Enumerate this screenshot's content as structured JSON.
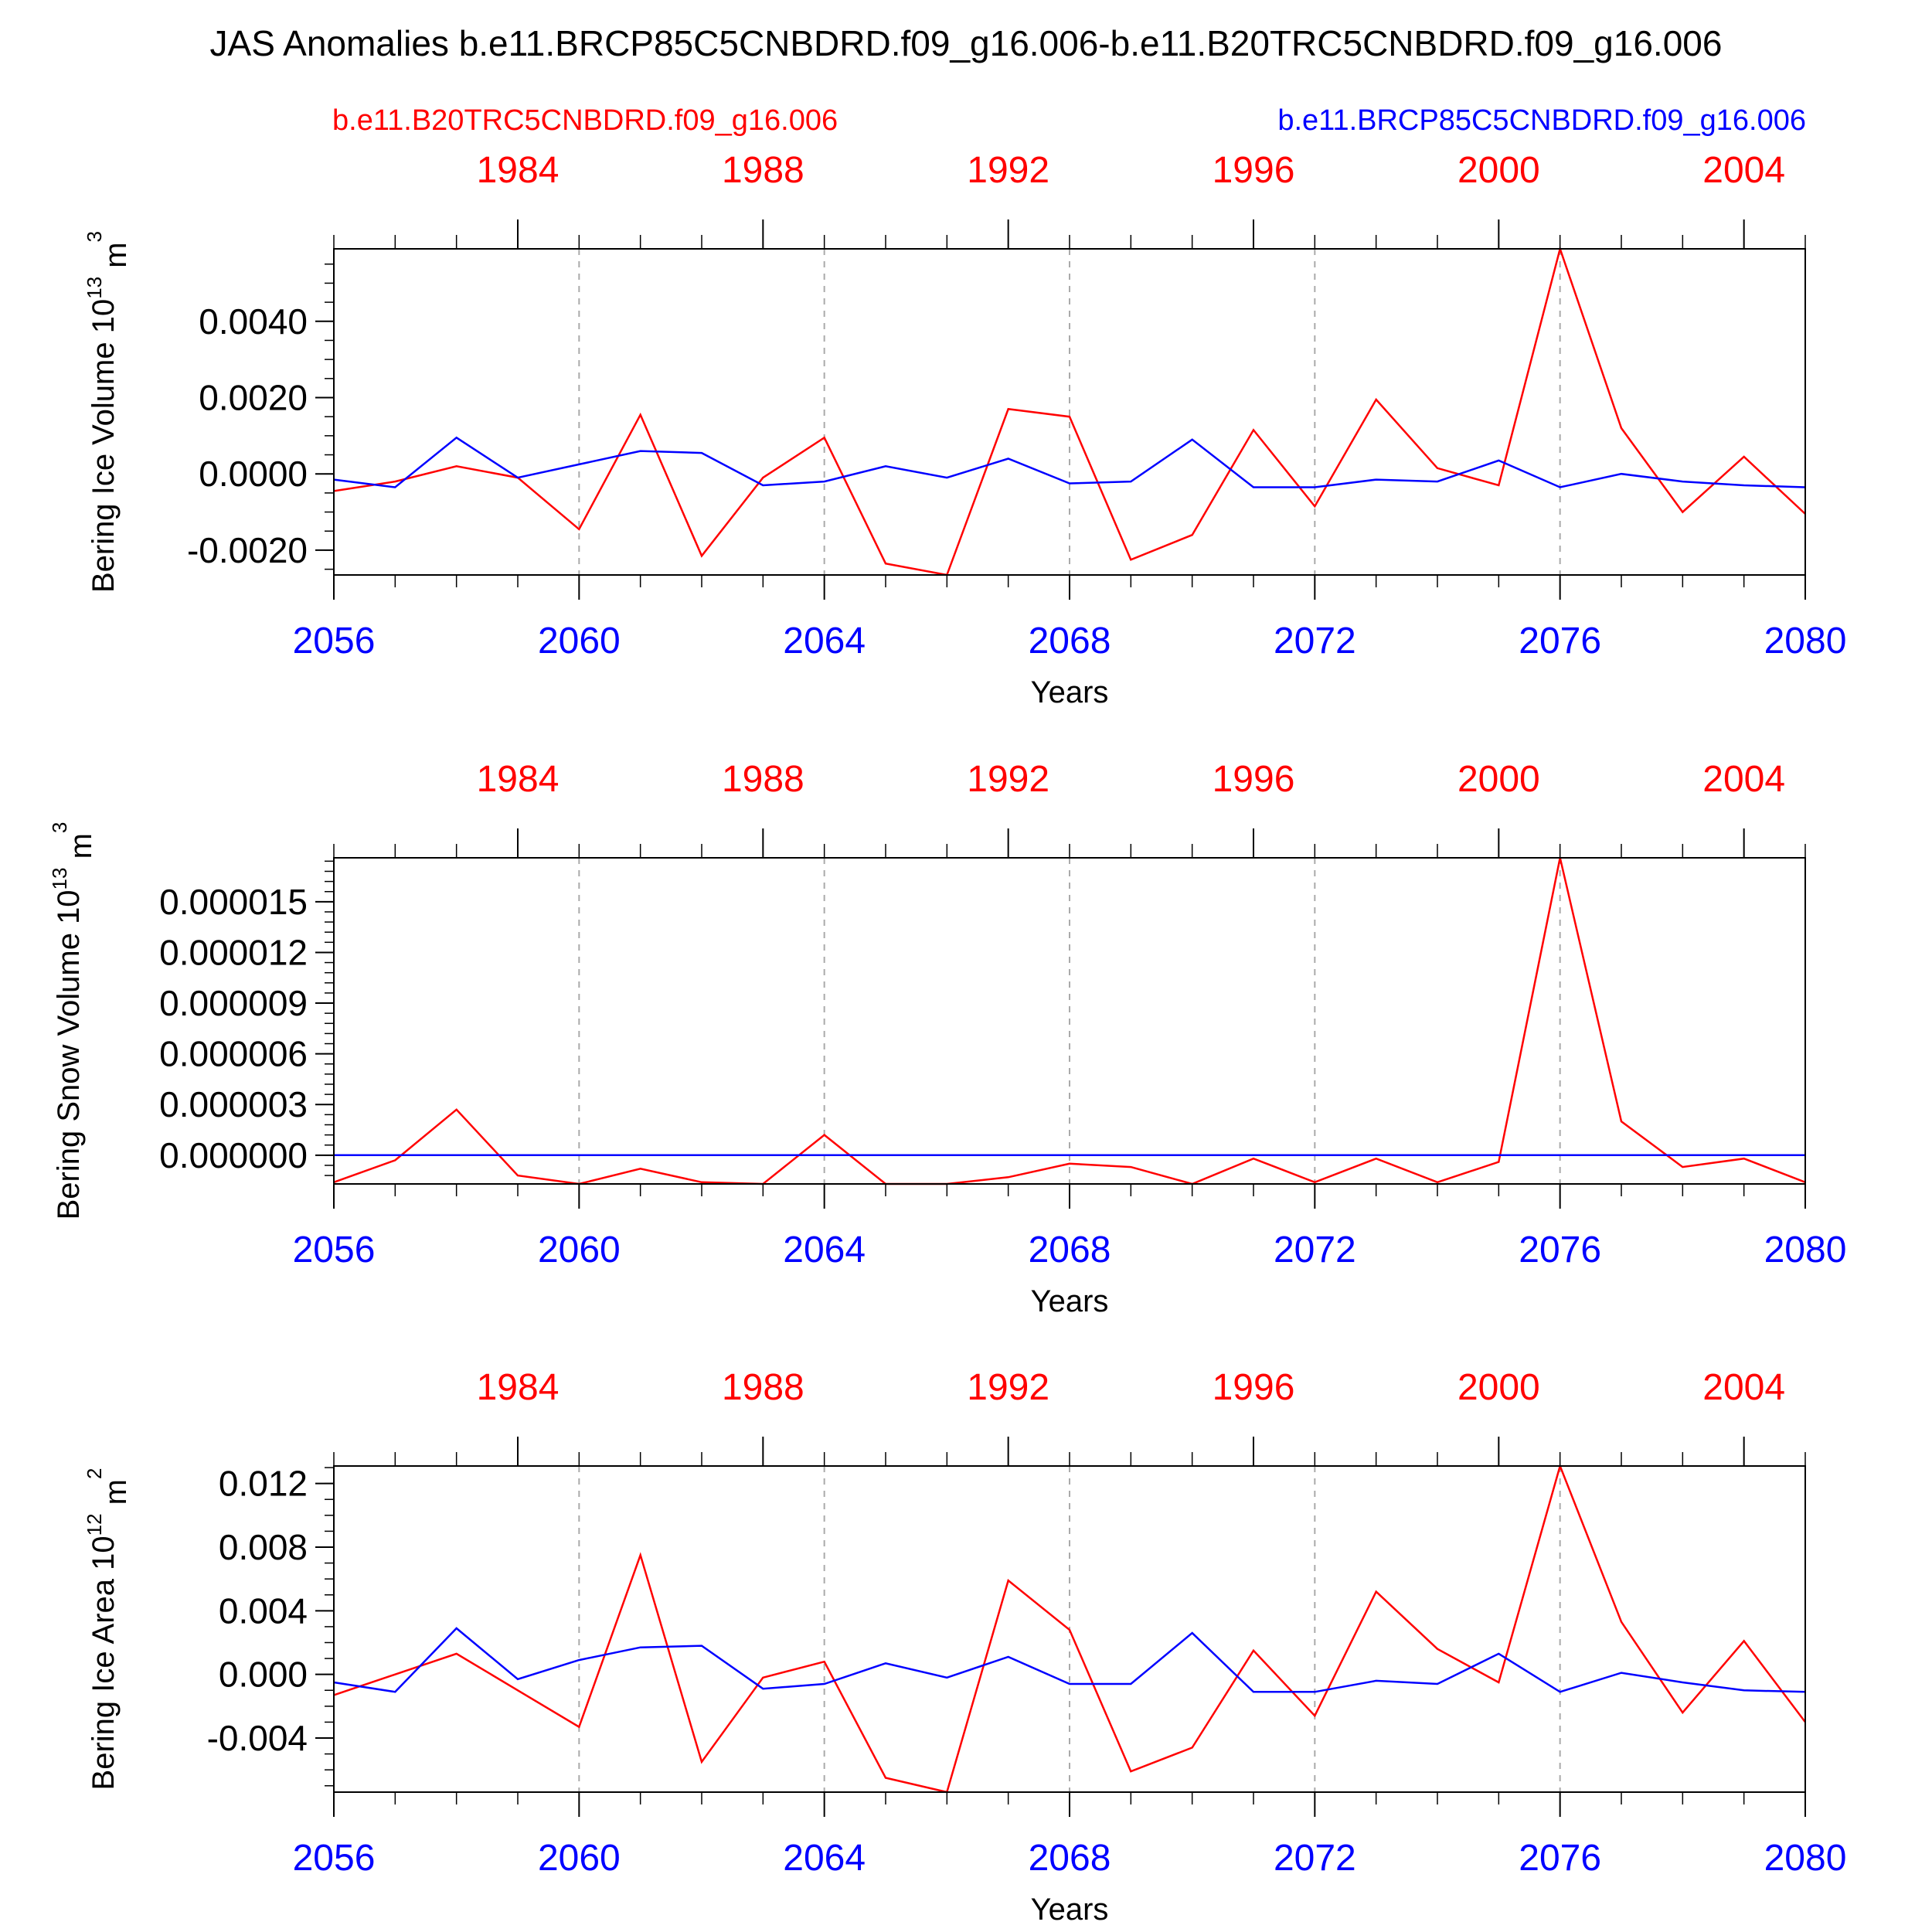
{
  "title": "JAS Anomalies b.e11.BRCP85C5CNBDRD.f09_g16.006-b.e11.B20TRC5CNBDRD.f09_g16.006",
  "legend": {
    "red_label": "b.e11.B20TRC5CNBDRD.f09_g16.006",
    "blue_label": "b.e11.BRCP85C5CNBDRD.f09_g16.006"
  },
  "colors": {
    "red": "#ff0000",
    "blue": "#0000ff",
    "axis": "#000000",
    "grid": "#aaaaaa"
  },
  "chart_data": [
    {
      "type": "line",
      "ylabel_main": "Bering Ice Volume 10",
      "ylabel_sup": "13",
      "ylabel_unit": " m",
      "ylabel_unit_sup": "3",
      "xlabel": "Years",
      "xlim": [
        2056,
        2080
      ],
      "ylim": [
        -0.00265,
        0.0059
      ],
      "yticks": [
        -0.002,
        0.0,
        0.002,
        0.004
      ],
      "ytick_labels": [
        "-0.0020",
        "0.0000",
        "0.0020",
        "0.0040"
      ],
      "yminor_step": 0.0005,
      "bottom_ticks": [
        2056,
        2060,
        2064,
        2068,
        2072,
        2076,
        2080
      ],
      "top_ticks": [
        1984,
        1988,
        1992,
        1996,
        2000,
        2004
      ],
      "top_offset": 75,
      "grid_x": [
        2060,
        2064,
        2068,
        2072,
        2076
      ],
      "x": [
        2056,
        2057,
        2058,
        2059,
        2060,
        2061,
        2062,
        2063,
        2064,
        2065,
        2066,
        2067,
        2068,
        2069,
        2070,
        2071,
        2072,
        2073,
        2074,
        2075,
        2076,
        2077,
        2078,
        2079,
        2080
      ],
      "series": [
        {
          "color": "red",
          "values": [
            -0.00045,
            -0.0002,
            0.0002,
            -0.0001,
            -0.00145,
            0.00155,
            -0.00215,
            -0.0001,
            0.00095,
            -0.00235,
            -0.00265,
            0.0017,
            0.0015,
            -0.00225,
            -0.0016,
            0.00115,
            -0.00085,
            0.00195,
            0.00015,
            -0.0003,
            0.0059,
            0.0012,
            -0.001,
            0.00045,
            -0.00105
          ]
        },
        {
          "color": "blue",
          "values": [
            -0.00015,
            -0.00035,
            0.00095,
            -0.0001,
            0.00025,
            0.0006,
            0.00055,
            -0.0003,
            -0.0002,
            0.0002,
            -0.0001,
            0.0004,
            -0.00025,
            -0.0002,
            0.0009,
            -0.00035,
            -0.00035,
            -0.00015,
            -0.0002,
            0.00035,
            -0.00035,
            0.0,
            -0.0002,
            -0.0003,
            -0.00035
          ]
        }
      ]
    },
    {
      "type": "line",
      "ylabel_main": "Bering Snow Volume 10",
      "ylabel_sup": "13",
      "ylabel_unit": " m",
      "ylabel_unit_sup": "3",
      "xlabel": "Years",
      "xlim": [
        2056,
        2080
      ],
      "ylim": [
        -1.7e-06,
        1.76e-05
      ],
      "yticks": [
        0.0,
        3e-06,
        6e-06,
        9e-06,
        1.2e-05,
        1.5e-05
      ],
      "ytick_labels": [
        "0.000000",
        "0.000003",
        "0.000006",
        "0.000009",
        "0.000012",
        "0.000015"
      ],
      "yminor_step": 6e-07,
      "bottom_ticks": [
        2056,
        2060,
        2064,
        2068,
        2072,
        2076,
        2080
      ],
      "top_ticks": [
        1984,
        1988,
        1992,
        1996,
        2000,
        2004
      ],
      "top_offset": 75,
      "grid_x": [
        2060,
        2064,
        2068,
        2072,
        2076
      ],
      "x": [
        2056,
        2057,
        2058,
        2059,
        2060,
        2061,
        2062,
        2063,
        2064,
        2065,
        2066,
        2067,
        2068,
        2069,
        2070,
        2071,
        2072,
        2073,
        2074,
        2075,
        2076,
        2077,
        2078,
        2079,
        2080
      ],
      "series": [
        {
          "color": "red",
          "values": [
            -1.6e-06,
            -3e-07,
            2.7e-06,
            -1.2e-06,
            -1.7e-06,
            -8e-07,
            -1.6e-06,
            -1.7e-06,
            1.2e-06,
            -1.7e-06,
            -1.7e-06,
            -1.3e-06,
            -5e-07,
            -7e-07,
            -1.7e-06,
            -2e-07,
            -1.6e-06,
            -2e-07,
            -1.6e-06,
            -4e-07,
            1.76e-05,
            2e-06,
            -7e-07,
            -2e-07,
            -1.6e-06
          ]
        },
        {
          "color": "blue",
          "values": [
            0,
            0,
            0,
            0,
            0,
            0,
            0,
            0,
            0,
            0,
            0,
            0,
            0,
            0,
            0,
            0,
            0,
            0,
            0,
            0,
            0,
            0,
            0,
            0,
            0
          ]
        }
      ]
    },
    {
      "type": "line",
      "ylabel_main": "Bering Ice Area 10",
      "ylabel_sup": "12",
      "ylabel_unit": " m",
      "ylabel_unit_sup": "2",
      "xlabel": "Years",
      "xlim": [
        2056,
        2080
      ],
      "ylim": [
        -0.0074,
        0.0131
      ],
      "yticks": [
        -0.004,
        0.0,
        0.004,
        0.008,
        0.012
      ],
      "ytick_labels": [
        "-0.004",
        "0.000",
        "0.004",
        "0.008",
        "0.012"
      ],
      "yminor_step": 0.001,
      "bottom_ticks": [
        2056,
        2060,
        2064,
        2068,
        2072,
        2076,
        2080
      ],
      "top_ticks": [
        1984,
        1988,
        1992,
        1996,
        2000,
        2004
      ],
      "top_offset": 75,
      "grid_x": [
        2060,
        2064,
        2068,
        2072,
        2076
      ],
      "x": [
        2056,
        2057,
        2058,
        2059,
        2060,
        2061,
        2062,
        2063,
        2064,
        2065,
        2066,
        2067,
        2068,
        2069,
        2070,
        2071,
        2072,
        2073,
        2074,
        2075,
        2076,
        2077,
        2078,
        2079,
        2080
      ],
      "series": [
        {
          "color": "red",
          "values": [
            -0.0013,
            0.0,
            0.0013,
            -0.001,
            -0.0033,
            0.0075,
            -0.0055,
            -0.0002,
            0.0008,
            -0.0065,
            -0.0074,
            0.0059,
            0.0028,
            -0.0061,
            -0.0046,
            0.0015,
            -0.0026,
            0.0052,
            0.0016,
            -0.0005,
            0.0131,
            0.0033,
            -0.0024,
            0.0021,
            -0.003
          ]
        },
        {
          "color": "blue",
          "values": [
            -0.0005,
            -0.0011,
            0.0029,
            -0.0003,
            0.0009,
            0.0017,
            0.0018,
            -0.0009,
            -0.0006,
            0.0007,
            -0.0002,
            0.0011,
            -0.0006,
            -0.0006,
            0.0026,
            -0.0011,
            -0.0011,
            -0.0004,
            -0.0006,
            0.0013,
            -0.0011,
            0.0001,
            -0.0005,
            -0.001,
            -0.0011
          ]
        }
      ]
    }
  ]
}
